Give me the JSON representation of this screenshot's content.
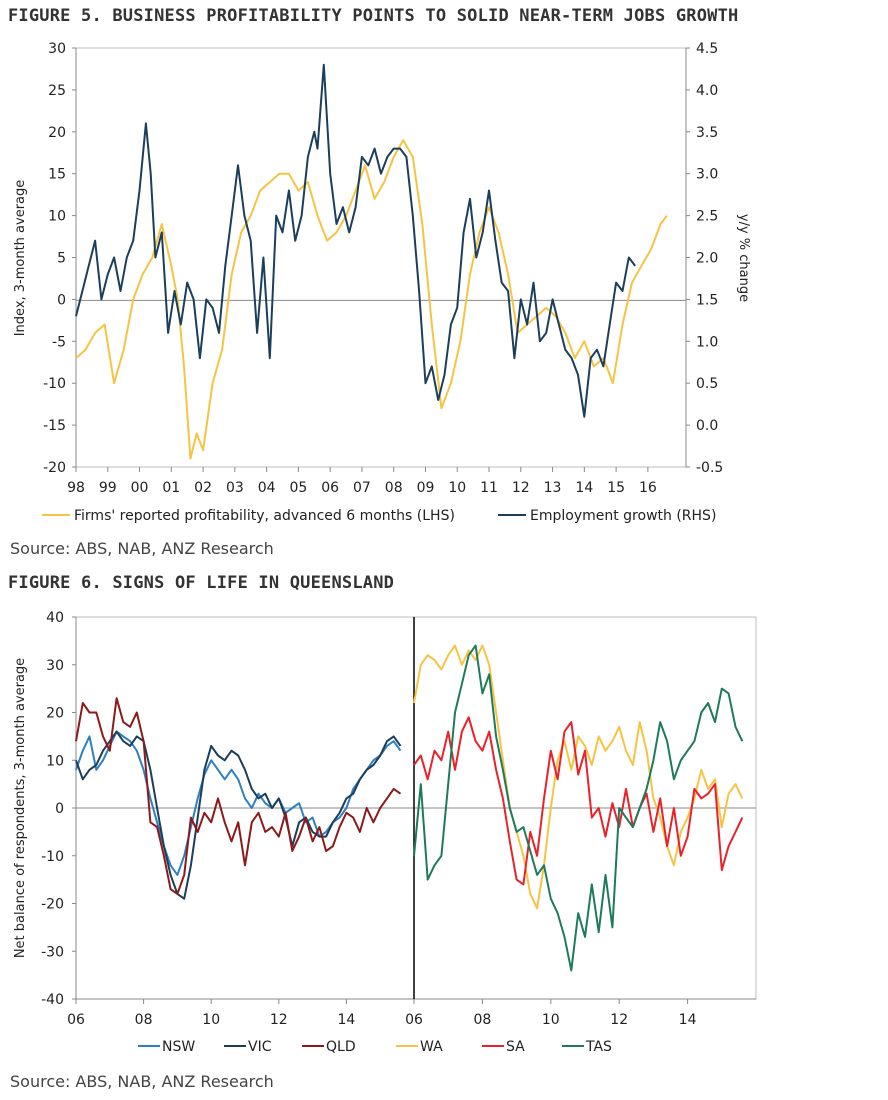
{
  "colors": {
    "frame": "#bdbdbd",
    "axis": "#888888",
    "divider": "#000000"
  },
  "figure5": {
    "title": "FIGURE 5. BUSINESS PROFITABILITY POINTS TO SOLID NEAR-TERM JOBS GROWTH",
    "source": "Source: ABS, NAB, ANZ Research"
  },
  "figure6": {
    "title": "FIGURE 6. SIGNS OF LIFE IN QUEENSLAND",
    "source": "Source: ABS, NAB, ANZ Research"
  },
  "chart_data": [
    {
      "type": "line",
      "title": "FIGURE 5. BUSINESS PROFITABILITY POINTS TO SOLID NEAR-TERM JOBS GROWTH",
      "ylabel": "Index, 3-month average",
      "y2label": "y/y % change",
      "ylim": [
        -20,
        30
      ],
      "y2lim": [
        -0.5,
        4.5
      ],
      "xlim": [
        1998,
        2017.2
      ],
      "xticks": [
        "98",
        "99",
        "00",
        "01",
        "02",
        "03",
        "04",
        "05",
        "06",
        "07",
        "08",
        "09",
        "10",
        "11",
        "12",
        "13",
        "14",
        "15",
        "16"
      ],
      "yticks": [
        "30",
        "25",
        "20",
        "15",
        "10",
        "5",
        "0",
        "-5",
        "-10",
        "-15",
        "-20"
      ],
      "y2ticks": [
        "4.5",
        "4.0",
        "3.5",
        "3.0",
        "2.5",
        "2.0",
        "1.5",
        "1.0",
        "0.5",
        "0.0",
        "-0.5"
      ],
      "legend_position": "bottom",
      "series": [
        {
          "name": "Firms' reported profitability, advanced 6 months (LHS)",
          "axis": "left",
          "color": "#f5c444",
          "x": [
            1998.0,
            1998.3,
            1998.6,
            1998.9,
            1999.2,
            1999.5,
            1999.8,
            2000.1,
            2000.4,
            2000.7,
            2001.0,
            2001.2,
            2001.4,
            2001.6,
            2001.8,
            2002.0,
            2002.3,
            2002.6,
            2002.9,
            2003.2,
            2003.5,
            2003.8,
            2004.1,
            2004.4,
            2004.7,
            2005.0,
            2005.3,
            2005.6,
            2005.9,
            2006.2,
            2006.5,
            2006.8,
            2007.1,
            2007.4,
            2007.7,
            2008.0,
            2008.3,
            2008.6,
            2008.9,
            2009.2,
            2009.5,
            2009.8,
            2010.1,
            2010.4,
            2010.7,
            2011.0,
            2011.3,
            2011.6,
            2011.9,
            2012.2,
            2012.5,
            2012.8,
            2013.1,
            2013.4,
            2013.7,
            2014.0,
            2014.3,
            2014.6,
            2014.9,
            2015.2,
            2015.5,
            2015.8,
            2016.1,
            2016.4,
            2016.6
          ],
          "y": [
            -7,
            -6,
            -4,
            -3,
            -10,
            -6,
            0,
            3,
            5,
            9,
            4,
            0,
            -8,
            -19,
            -16,
            -18,
            -10,
            -6,
            3,
            8,
            10,
            13,
            14,
            15,
            15,
            13,
            14,
            10,
            7,
            8,
            10,
            13,
            16,
            12,
            14,
            17,
            19,
            17,
            9,
            -3,
            -13,
            -10,
            -5,
            3,
            8,
            11,
            8,
            3,
            -4,
            -3,
            -2,
            -1,
            -2,
            -4,
            -7,
            -5,
            -8,
            -7,
            -10,
            -3,
            2,
            4,
            6,
            9,
            10
          ]
        },
        {
          "name": "Employment growth (RHS)",
          "axis": "right",
          "color": "#1b3e5a",
          "x": [
            1998.0,
            1998.2,
            1998.4,
            1998.6,
            1998.8,
            1999.0,
            1999.2,
            1999.4,
            1999.6,
            1999.8,
            2000.0,
            2000.2,
            2000.35,
            2000.5,
            2000.7,
            2000.9,
            2001.1,
            2001.3,
            2001.5,
            2001.7,
            2001.9,
            2002.1,
            2002.3,
            2002.5,
            2002.7,
            2002.9,
            2003.1,
            2003.3,
            2003.5,
            2003.7,
            2003.9,
            2004.1,
            2004.3,
            2004.5,
            2004.7,
            2004.9,
            2005.1,
            2005.3,
            2005.5,
            2005.6,
            2005.8,
            2006.0,
            2006.2,
            2006.4,
            2006.6,
            2006.8,
            2007.0,
            2007.2,
            2007.4,
            2007.6,
            2007.8,
            2008.0,
            2008.2,
            2008.4,
            2008.6,
            2008.8,
            2009.0,
            2009.2,
            2009.4,
            2009.6,
            2009.8,
            2010.0,
            2010.2,
            2010.4,
            2010.6,
            2010.8,
            2011.0,
            2011.2,
            2011.4,
            2011.6,
            2011.8,
            2012.0,
            2012.2,
            2012.4,
            2012.6,
            2012.8,
            2013.0,
            2013.2,
            2013.4,
            2013.6,
            2013.8,
            2014.0,
            2014.2,
            2014.4,
            2014.6,
            2014.8,
            2015.0,
            2015.2,
            2015.4,
            2015.6
          ],
          "y": [
            1.3,
            1.6,
            1.9,
            2.2,
            1.5,
            1.8,
            2.0,
            1.6,
            2.0,
            2.2,
            2.8,
            3.6,
            3.0,
            2.0,
            2.3,
            1.1,
            1.6,
            1.2,
            1.7,
            1.5,
            0.8,
            1.5,
            1.4,
            1.1,
            1.9,
            2.5,
            3.1,
            2.5,
            2.2,
            1.1,
            2.0,
            0.8,
            2.5,
            2.3,
            2.8,
            2.2,
            2.5,
            3.2,
            3.5,
            3.3,
            4.3,
            3.0,
            2.4,
            2.6,
            2.3,
            2.6,
            3.2,
            3.1,
            3.3,
            3.0,
            3.2,
            3.3,
            3.3,
            3.2,
            2.5,
            1.6,
            0.5,
            0.7,
            0.3,
            0.6,
            1.2,
            1.4,
            2.3,
            2.7,
            2.0,
            2.3,
            2.8,
            2.2,
            1.7,
            1.6,
            0.8,
            1.5,
            1.2,
            1.7,
            1.0,
            1.1,
            1.5,
            1.2,
            0.9,
            0.8,
            0.6,
            0.1,
            0.8,
            0.9,
            0.7,
            1.2,
            1.7,
            1.6,
            2.0,
            1.9
          ]
        }
      ]
    },
    {
      "type": "line",
      "title": "FIGURE 6. SIGNS OF LIFE IN QUEENSLAND",
      "ylabel": "Net balance of respondents, 3-month average",
      "ylim": [
        -40,
        40
      ],
      "yticks": [
        "40",
        "30",
        "20",
        "10",
        "0",
        "-10",
        "-20",
        "-30",
        "-40"
      ],
      "xticks": [
        "06",
        "08",
        "10",
        "12",
        "14",
        "06",
        "08",
        "10",
        "12",
        "14"
      ],
      "panels": [
        {
          "xlim": [
            2006,
            2016
          ]
        },
        {
          "xlim": [
            2006,
            2016
          ]
        }
      ],
      "legend_position": "bottom",
      "series": [
        {
          "name": "NSW",
          "panel": 0,
          "color": "#2f7fc2",
          "x": [
            2006.0,
            2006.2,
            2006.4,
            2006.6,
            2006.8,
            2007.0,
            2007.2,
            2007.4,
            2007.6,
            2007.8,
            2008.0,
            2008.2,
            2008.4,
            2008.6,
            2008.8,
            2009.0,
            2009.2,
            2009.4,
            2009.6,
            2009.8,
            2010.0,
            2010.2,
            2010.4,
            2010.6,
            2010.8,
            2011.0,
            2011.2,
            2011.4,
            2011.6,
            2011.8,
            2012.0,
            2012.2,
            2012.4,
            2012.6,
            2012.8,
            2013.0,
            2013.2,
            2013.4,
            2013.6,
            2013.8,
            2014.0,
            2014.2,
            2014.4,
            2014.6,
            2014.8,
            2015.0,
            2015.2,
            2015.4,
            2015.6
          ],
          "y": [
            8,
            12,
            15,
            8,
            10,
            13,
            16,
            15,
            14,
            12,
            8,
            2,
            -3,
            -8,
            -12,
            -14,
            -10,
            -4,
            2,
            7,
            10,
            8,
            6,
            8,
            6,
            2,
            0,
            3,
            1,
            0,
            2,
            -1,
            0,
            1,
            -3,
            -2,
            -6,
            -5,
            -3,
            -2,
            0,
            4,
            6,
            8,
            10,
            11,
            13,
            14,
            12
          ]
        },
        {
          "name": "VIC",
          "panel": 0,
          "color": "#1b3e5a",
          "x": [
            2006.0,
            2006.2,
            2006.4,
            2006.6,
            2006.8,
            2007.0,
            2007.2,
            2007.4,
            2007.6,
            2007.8,
            2008.0,
            2008.2,
            2008.4,
            2008.6,
            2008.8,
            2009.0,
            2009.2,
            2009.4,
            2009.6,
            2009.8,
            2010.0,
            2010.2,
            2010.4,
            2010.6,
            2010.8,
            2011.0,
            2011.2,
            2011.4,
            2011.6,
            2011.8,
            2012.0,
            2012.2,
            2012.4,
            2012.6,
            2012.8,
            2013.0,
            2013.2,
            2013.4,
            2013.6,
            2013.8,
            2014.0,
            2014.2,
            2014.4,
            2014.6,
            2014.8,
            2015.0,
            2015.2,
            2015.4,
            2015.6
          ],
          "y": [
            10,
            6,
            8,
            9,
            12,
            14,
            16,
            14,
            13,
            15,
            14,
            8,
            0,
            -8,
            -14,
            -18,
            -19,
            -12,
            -2,
            8,
            13,
            11,
            10,
            12,
            11,
            8,
            4,
            2,
            3,
            0,
            2,
            -2,
            -8,
            -3,
            -2,
            -5,
            -6,
            -6,
            -3,
            -1,
            2,
            3,
            6,
            8,
            9,
            11,
            14,
            15,
            13
          ]
        },
        {
          "name": "QLD",
          "panel": 0,
          "color": "#8b1a1a",
          "x": [
            2006.0,
            2006.2,
            2006.4,
            2006.6,
            2006.8,
            2007.0,
            2007.2,
            2007.4,
            2007.6,
            2007.8,
            2008.0,
            2008.2,
            2008.4,
            2008.6,
            2008.8,
            2009.0,
            2009.2,
            2009.4,
            2009.6,
            2009.8,
            2010.0,
            2010.2,
            2010.4,
            2010.6,
            2010.8,
            2011.0,
            2011.2,
            2011.4,
            2011.6,
            2011.8,
            2012.0,
            2012.2,
            2012.4,
            2012.6,
            2012.8,
            2013.0,
            2013.2,
            2013.4,
            2013.6,
            2013.8,
            2014.0,
            2014.2,
            2014.4,
            2014.6,
            2014.8,
            2015.0,
            2015.2,
            2015.4,
            2015.6
          ],
          "y": [
            14,
            22,
            20,
            20,
            15,
            12,
            23,
            18,
            17,
            20,
            14,
            -3,
            -4,
            -10,
            -17,
            -18,
            -14,
            -2,
            -5,
            -1,
            -3,
            2,
            -3,
            -7,
            -3,
            -12,
            -3,
            -1,
            -5,
            -4,
            -6,
            -1,
            -9,
            -6,
            -2,
            -7,
            -4,
            -9,
            -8,
            -4,
            -1,
            -2,
            -5,
            0,
            -3,
            0,
            2,
            4,
            3
          ]
        },
        {
          "name": "WA",
          "panel": 1,
          "color": "#f5c444",
          "x": [
            2006.0,
            2006.2,
            2006.4,
            2006.6,
            2006.8,
            2007.0,
            2007.2,
            2007.4,
            2007.6,
            2007.8,
            2008.0,
            2008.2,
            2008.4,
            2008.6,
            2008.8,
            2009.0,
            2009.2,
            2009.4,
            2009.6,
            2009.8,
            2010.0,
            2010.2,
            2010.4,
            2010.6,
            2010.8,
            2011.0,
            2011.2,
            2011.4,
            2011.6,
            2011.8,
            2012.0,
            2012.2,
            2012.4,
            2012.6,
            2012.8,
            2013.0,
            2013.2,
            2013.4,
            2013.6,
            2013.8,
            2014.0,
            2014.2,
            2014.4,
            2014.6,
            2014.8,
            2015.0,
            2015.2,
            2015.4,
            2015.6
          ],
          "y": [
            22,
            30,
            32,
            31,
            29,
            32,
            34,
            30,
            33,
            31,
            34,
            30,
            20,
            10,
            0,
            -5,
            -10,
            -18,
            -21,
            -12,
            0,
            10,
            14,
            8,
            15,
            13,
            9,
            15,
            12,
            14,
            17,
            12,
            9,
            18,
            12,
            2,
            -2,
            -8,
            -12,
            -5,
            -2,
            2,
            8,
            4,
            6,
            -4,
            3,
            5,
            2
          ]
        },
        {
          "name": "SA",
          "panel": 1,
          "color": "#e8222a",
          "x": [
            2006.0,
            2006.2,
            2006.4,
            2006.6,
            2006.8,
            2007.0,
            2007.2,
            2007.4,
            2007.6,
            2007.8,
            2008.0,
            2008.2,
            2008.4,
            2008.6,
            2008.8,
            2009.0,
            2009.2,
            2009.4,
            2009.6,
            2009.8,
            2010.0,
            2010.2,
            2010.4,
            2010.6,
            2010.8,
            2011.0,
            2011.2,
            2011.4,
            2011.6,
            2011.8,
            2012.0,
            2012.2,
            2012.4,
            2012.6,
            2012.8,
            2013.0,
            2013.2,
            2013.4,
            2013.6,
            2013.8,
            2014.0,
            2014.2,
            2014.4,
            2014.6,
            2014.8,
            2015.0,
            2015.2,
            2015.4,
            2015.6
          ],
          "y": [
            9,
            11,
            6,
            12,
            10,
            16,
            8,
            16,
            19,
            14,
            12,
            16,
            8,
            2,
            -7,
            -15,
            -16,
            -5,
            -10,
            2,
            12,
            6,
            16,
            18,
            7,
            12,
            -2,
            0,
            -6,
            1,
            -4,
            4,
            -4,
            0,
            3,
            -5,
            2,
            -8,
            0,
            -10,
            -6,
            4,
            2,
            3,
            5,
            -13,
            -8,
            -5,
            -2
          ]
        },
        {
          "name": "TAS",
          "panel": 1,
          "color": "#1f7a5a",
          "x": [
            2006.0,
            2006.2,
            2006.4,
            2006.6,
            2006.8,
            2007.0,
            2007.2,
            2007.4,
            2007.6,
            2007.8,
            2008.0,
            2008.2,
            2008.4,
            2008.6,
            2008.8,
            2009.0,
            2009.2,
            2009.4,
            2009.6,
            2009.8,
            2010.0,
            2010.2,
            2010.4,
            2010.6,
            2010.8,
            2011.0,
            2011.2,
            2011.4,
            2011.6,
            2011.8,
            2012.0,
            2012.2,
            2012.4,
            2012.6,
            2012.8,
            2013.0,
            2013.2,
            2013.4,
            2013.6,
            2013.8,
            2014.0,
            2014.2,
            2014.4,
            2014.6,
            2014.8,
            2015.0,
            2015.2,
            2015.4,
            2015.6
          ],
          "y": [
            -10,
            5,
            -15,
            -12,
            -10,
            5,
            20,
            26,
            32,
            34,
            24,
            28,
            15,
            8,
            0,
            -5,
            -4,
            -9,
            -14,
            -12,
            -19,
            -22,
            -27,
            -34,
            -22,
            -27,
            -16,
            -26,
            -14,
            -25,
            0,
            -2,
            -4,
            0,
            4,
            10,
            18,
            14,
            6,
            10,
            12,
            14,
            20,
            22,
            18,
            25,
            24,
            17,
            14
          ]
        }
      ]
    }
  ]
}
